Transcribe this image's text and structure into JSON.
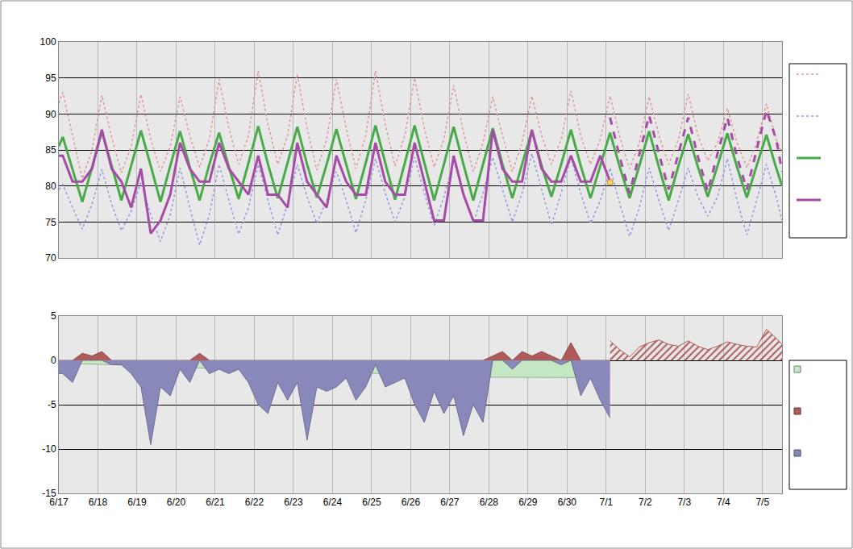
{
  "chart_data": [
    {
      "type": "line",
      "x": [
        0,
        0.1,
        0.35,
        0.6,
        0.85,
        1.1,
        1.35,
        1.6,
        1.85,
        2.1,
        2.35,
        2.6,
        2.85,
        3.1,
        3.35,
        3.6,
        3.85,
        4.1,
        4.35,
        4.6,
        4.85,
        5.1,
        5.35,
        5.6,
        5.85,
        6.1,
        6.35,
        6.6,
        6.85,
        7.1,
        7.35,
        7.6,
        7.85,
        8.1,
        8.35,
        8.6,
        8.85,
        9.1,
        9.35,
        9.6,
        9.85,
        10.1,
        10.35,
        10.6,
        10.85,
        11.1,
        11.35,
        11.6,
        11.85,
        12.1,
        12.35,
        12.6,
        12.85,
        13.1,
        13.35,
        13.6,
        13.85,
        14.1,
        14.35,
        14.6,
        14.85,
        15.1,
        15.35,
        15.6,
        15.85,
        16.1,
        16.35,
        16.6,
        16.85,
        17.1,
        17.35,
        17.6,
        17.85,
        18.1,
        18.35,
        18.5
      ],
      "xlim": [
        0,
        18.5
      ],
      "xticks": [
        0,
        1,
        2,
        3,
        4,
        5,
        6,
        7,
        8,
        9,
        10,
        11,
        12,
        13,
        14,
        15,
        16,
        17,
        18
      ],
      "ylim": [
        70,
        100
      ],
      "yticks": [
        70,
        75,
        80,
        85,
        90,
        95,
        100
      ],
      "grid": true,
      "legend": "right",
      "tick_labels": "y",
      "series": [
        {
          "type": "line",
          "color": "#e09a9a",
          "line_style": "dotted",
          "values": [
            91.5,
            93.0,
            87.0,
            81.0,
            85.0,
            92.6,
            86.8,
            81.8,
            85.5,
            92.7,
            86.5,
            82.0,
            85.5,
            92.4,
            87.0,
            82.6,
            86.5,
            94.8,
            88.0,
            83.0,
            87.0,
            96.0,
            88.5,
            83.0,
            87.0,
            95.5,
            88.0,
            82.2,
            86.5,
            94.8,
            88.0,
            82.4,
            87.0,
            96.0,
            88.5,
            82.8,
            87.0,
            95.0,
            88.0,
            82.6,
            86.5,
            94.0,
            87.5,
            82.0,
            86.0,
            92.4,
            87.0,
            82.0,
            86.0,
            92.5,
            87.0,
            83.0,
            86.5,
            93.2,
            87.0,
            83.0,
            86.5,
            92.5,
            86.8,
            82.4,
            86.0,
            92.4,
            87.0,
            83.0,
            86.5,
            92.8,
            87.0,
            83.5,
            86.0,
            90.8,
            86.0,
            82.5,
            86.0,
            91.4,
            86.5,
            84.6
          ]
        },
        {
          "type": "line",
          "color": "#9a9ae0",
          "line_style": "dotted",
          "values": [
            79.5,
            80.2,
            77.0,
            74.0,
            77.5,
            82.3,
            77.5,
            73.8,
            76.5,
            80.5,
            76.0,
            72.3,
            76.0,
            82.5,
            77.0,
            71.8,
            76.0,
            83.0,
            78.0,
            73.3,
            77.0,
            83.0,
            78.0,
            73.2,
            77.5,
            83.0,
            78.5,
            74.8,
            78.0,
            82.0,
            78.0,
            73.5,
            78.0,
            83.8,
            79.0,
            75.0,
            78.5,
            84.0,
            79.0,
            74.5,
            78.5,
            83.5,
            79.0,
            74.8,
            79.0,
            84.0,
            79.5,
            75.0,
            79.0,
            84.5,
            79.5,
            74.6,
            79.0,
            84.0,
            79.0,
            74.8,
            78.0,
            82.5,
            77.5,
            73.0,
            77.0,
            82.5,
            78.0,
            73.8,
            78.0,
            82.5,
            78.5,
            75.8,
            78.5,
            83.8,
            78.0,
            73.2,
            78.0,
            83.0,
            78.5,
            75.2
          ]
        },
        {
          "type": "line",
          "color": "#4aaa4a",
          "line_style": "solid",
          "values": [
            85.5,
            86.8,
            82.3,
            77.8,
            82.6,
            87.6,
            82.8,
            78.0,
            82.8,
            87.7,
            82.8,
            77.8,
            82.8,
            87.6,
            82.6,
            78.0,
            83.0,
            87.4,
            82.6,
            78.2,
            83.2,
            88.3,
            83.0,
            78.3,
            83.2,
            88.2,
            83.0,
            78.4,
            83.0,
            87.9,
            83.0,
            78.2,
            83.2,
            88.4,
            83.2,
            78.1,
            83.2,
            88.4,
            83.2,
            78.0,
            83.0,
            88.2,
            83.0,
            78.0,
            83.0,
            88.0,
            83.0,
            78.3,
            83.0,
            87.7,
            82.8,
            78.5,
            83.0,
            87.8,
            82.8,
            78.3,
            82.8,
            87.4,
            82.6,
            78.3,
            82.8,
            87.6,
            82.6,
            78.0,
            82.8,
            87.2,
            82.6,
            78.5,
            82.8,
            87.3,
            82.6,
            78.4,
            82.8,
            87.1,
            82.5,
            80.0
          ]
        },
        {
          "type": "line",
          "color": "#a64ca6",
          "line_style": "solid",
          "x": [
            0,
            0.1,
            0.35,
            0.6,
            0.85,
            1.1,
            1.35,
            1.6,
            1.85,
            2.1,
            2.35,
            2.6,
            2.85,
            3.1,
            3.35,
            3.6,
            3.85,
            4.1,
            4.35,
            4.6,
            4.85,
            5.1,
            5.35,
            5.6,
            5.85,
            6.1,
            6.35,
            6.6,
            6.85,
            7.1,
            7.35,
            7.6,
            7.85,
            8.1,
            8.35,
            8.6,
            8.85,
            9.1,
            9.35,
            9.6,
            9.85,
            10.1,
            10.35,
            10.6,
            10.85,
            11.1,
            11.35,
            11.6,
            11.85,
            12.1,
            12.35,
            12.6,
            12.85,
            13.1,
            13.35,
            13.6,
            13.85,
            14.1
          ],
          "values": [
            84.2,
            84.2,
            80.6,
            80.6,
            82.4,
            87.8,
            82.4,
            80.6,
            77.0,
            82.4,
            73.4,
            75.2,
            78.8,
            86.0,
            82.4,
            80.6,
            80.6,
            86.0,
            82.4,
            80.6,
            78.8,
            84.2,
            78.8,
            78.8,
            77.0,
            86.0,
            80.6,
            78.8,
            77.0,
            84.2,
            80.6,
            78.8,
            78.8,
            86.0,
            80.6,
            78.8,
            78.8,
            86.0,
            80.6,
            75.2,
            75.2,
            84.2,
            78.8,
            75.2,
            75.2,
            87.8,
            82.4,
            80.6,
            80.6,
            87.8,
            82.4,
            80.6,
            80.6,
            84.2,
            80.6,
            80.6,
            84.2,
            80.6
          ]
        },
        {
          "type": "line",
          "color": "#a64ca6",
          "line_style": "dashed",
          "x": [
            14.1,
            14.35,
            14.6,
            14.85,
            15.1,
            15.35,
            15.6,
            15.85,
            16.1,
            16.35,
            16.6,
            16.85,
            17.1,
            17.35,
            17.6,
            17.85,
            18.1,
            18.35,
            18.5
          ],
          "values": [
            89.5,
            84.0,
            79.0,
            84.5,
            89.8,
            84.5,
            79.5,
            84.5,
            89.5,
            84.0,
            79.2,
            84.5,
            89.5,
            84.0,
            79.5,
            85.0,
            90.5,
            86.5,
            82.0
          ]
        },
        {
          "type": "scatter",
          "color": "#ffd75e",
          "marker": "circle",
          "x": [
            14.1
          ],
          "values": [
            80.5
          ]
        }
      ]
    },
    {
      "type": "area",
      "x": [
        0,
        0.1,
        0.35,
        0.6,
        0.85,
        1.1,
        1.35,
        1.6,
        1.85,
        2.1,
        2.35,
        2.6,
        2.85,
        3.1,
        3.35,
        3.6,
        3.85,
        4.1,
        4.35,
        4.6,
        4.85,
        5.1,
        5.35,
        5.6,
        5.85,
        6.1,
        6.35,
        6.6,
        6.85,
        7.1,
        7.35,
        7.6,
        7.85,
        8.1,
        8.35,
        8.6,
        8.85,
        9.1,
        9.35,
        9.6,
        9.85,
        10.1,
        10.35,
        10.6,
        10.85,
        11.1,
        11.35,
        11.6,
        11.85,
        12.1,
        12.35,
        12.6,
        12.85,
        13.1,
        13.35,
        13.6,
        13.85,
        14.1
      ],
      "xlim": [
        0,
        18.5
      ],
      "xticks": [
        {
          "value": 0,
          "label": "6/17"
        },
        {
          "value": 1,
          "label": "6/18"
        },
        {
          "value": 2,
          "label": "6/19"
        },
        {
          "value": 3,
          "label": "6/20"
        },
        {
          "value": 4,
          "label": "6/21"
        },
        {
          "value": 5,
          "label": "6/22"
        },
        {
          "value": 6,
          "label": "6/23"
        },
        {
          "value": 7,
          "label": "6/24"
        },
        {
          "value": 8,
          "label": "6/25"
        },
        {
          "value": 9,
          "label": "6/26"
        },
        {
          "value": 10,
          "label": "6/27"
        },
        {
          "value": 11,
          "label": "6/28"
        },
        {
          "value": 12,
          "label": "6/29"
        },
        {
          "value": 13,
          "label": "6/30"
        },
        {
          "value": 14,
          "label": "7/1"
        },
        {
          "value": 15,
          "label": "7/2"
        },
        {
          "value": 16,
          "label": "7/3"
        },
        {
          "value": 17,
          "label": "7/4"
        },
        {
          "value": 18,
          "label": "7/5"
        }
      ],
      "ylim": [
        -15,
        5
      ],
      "yticks": [
        5,
        0,
        -5,
        -10,
        -15
      ],
      "grid": true,
      "legend": "right",
      "series": [
        {
          "type": "area",
          "color": "#c4e8c4",
          "values": [
            -0.3,
            -0.3,
            -0.35,
            -0.4,
            -0.4,
            -0.45,
            -0.5,
            -0.5,
            -0.55,
            -0.6,
            -0.7,
            -0.75,
            -0.8,
            -0.8,
            -0.85,
            -0.85,
            -0.9,
            -0.9,
            -0.95,
            -0.95,
            -1.0,
            -1.0,
            -1.05,
            -1.1,
            -1.15,
            -1.2,
            -1.25,
            -1.3,
            -1.3,
            -1.35,
            -1.4,
            -1.4,
            -1.45,
            -1.45,
            -1.5,
            -1.5,
            -1.5,
            -1.55,
            -1.6,
            -1.65,
            -1.7,
            -1.75,
            -1.8,
            -1.85,
            -1.9,
            -1.9,
            -1.9,
            -1.9,
            -1.9,
            -1.9,
            -1.9,
            -1.9,
            -1.9,
            -1.95,
            -1.95,
            -2.0,
            -2.0,
            -2.0
          ]
        },
        {
          "type": "area",
          "color": "#b05a5a",
          "values": [
            0,
            0,
            0,
            0.8,
            0.5,
            1.0,
            0,
            0,
            0,
            0,
            0,
            0,
            0,
            0,
            0,
            0.8,
            0,
            0,
            0,
            0,
            0,
            0,
            0,
            0,
            0,
            0,
            0,
            0,
            0,
            0,
            0,
            0,
            0,
            0,
            0,
            0,
            0,
            0,
            0,
            0,
            0,
            0,
            0,
            0,
            0,
            0.5,
            1.0,
            0,
            1.0,
            0.5,
            1.0,
            0.5,
            0,
            2.0,
            0,
            0,
            0,
            0
          ]
        },
        {
          "type": "area",
          "color": "#8888bb",
          "values": [
            -1.5,
            -1.5,
            -2.5,
            0,
            0,
            0,
            -0.5,
            -0.5,
            -1.5,
            -3,
            -9.5,
            -3,
            -4,
            -1,
            -2.5,
            0,
            -1.5,
            -1,
            -1.5,
            -1,
            -2.5,
            -5,
            -6,
            -2.5,
            -4.5,
            -2.5,
            -9,
            -3,
            -3.5,
            -3,
            -2,
            -4.5,
            -3,
            -0.5,
            -3,
            -2.5,
            -2,
            -5,
            -7,
            -3.5,
            -6,
            -4,
            -8.5,
            -5,
            -7,
            0,
            0,
            -1,
            0,
            0,
            0,
            0,
            -0.5,
            0,
            -4,
            -2,
            -4.5,
            -6.5
          ]
        },
        {
          "type": "hatched_area",
          "color": "#b05a5a",
          "x": [
            14.1,
            14.35,
            14.6,
            14.85,
            15.1,
            15.35,
            15.6,
            15.85,
            16.1,
            16.35,
            16.6,
            16.85,
            17.1,
            17.35,
            17.6,
            17.85,
            18.1,
            18.35,
            18.5
          ],
          "values": [
            2.2,
            1.2,
            0.4,
            1.5,
            2.0,
            2.3,
            1.8,
            1.6,
            2.2,
            1.6,
            1.2,
            1.6,
            2.1,
            1.8,
            1.6,
            1.5,
            3.5,
            2.5,
            1.8
          ]
        }
      ]
    }
  ]
}
